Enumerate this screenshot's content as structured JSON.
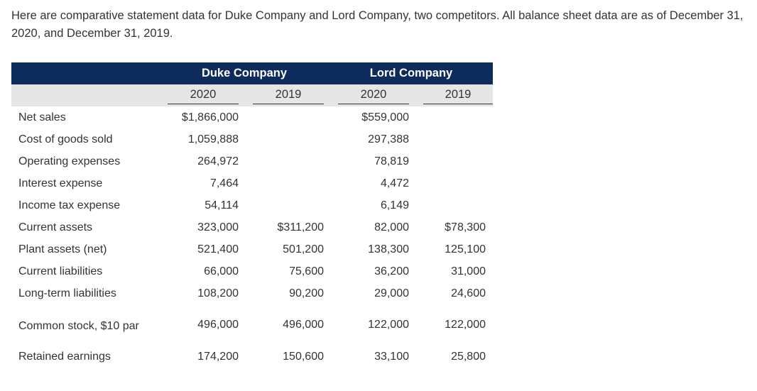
{
  "intro": "Here are comparative statement data for Duke Company and Lord Company, two competitors. All balance sheet data are as of December 31, 2020, and December 31, 2019.",
  "companies": [
    "Duke Company",
    "Lord Company"
  ],
  "years": [
    "2020",
    "2019",
    "2020",
    "2019"
  ],
  "rows": [
    {
      "label": "Net sales",
      "values": [
        "$1,866,000",
        "",
        "$559,000",
        ""
      ]
    },
    {
      "label": "Cost of goods sold",
      "values": [
        "1,059,888",
        "",
        "297,388",
        ""
      ]
    },
    {
      "label": "Operating expenses",
      "values": [
        "264,972",
        "",
        "78,819",
        ""
      ]
    },
    {
      "label": "Interest expense",
      "values": [
        "7,464",
        "",
        "4,472",
        ""
      ]
    },
    {
      "label": "Income tax expense",
      "values": [
        "54,114",
        "",
        "6,149",
        ""
      ]
    },
    {
      "label": "Current assets",
      "values": [
        "323,000",
        "$311,200",
        "82,000",
        "$78,300"
      ]
    },
    {
      "label": "Plant assets (net)",
      "values": [
        "521,400",
        "501,200",
        "138,300",
        "125,100"
      ]
    },
    {
      "label": "Current liabilities",
      "values": [
        "66,000",
        "75,600",
        "36,200",
        "31,000"
      ]
    },
    {
      "label": "Long-term liabilities",
      "values": [
        "108,200",
        "90,200",
        "29,000",
        "24,600"
      ]
    },
    {
      "label": "Common stock, $10 par",
      "values": [
        "496,000",
        "496,000",
        "122,000",
        "122,000"
      ]
    },
    {
      "label": "Retained earnings",
      "values": [
        "174,200",
        "150,600",
        "33,100",
        "25,800"
      ]
    }
  ]
}
